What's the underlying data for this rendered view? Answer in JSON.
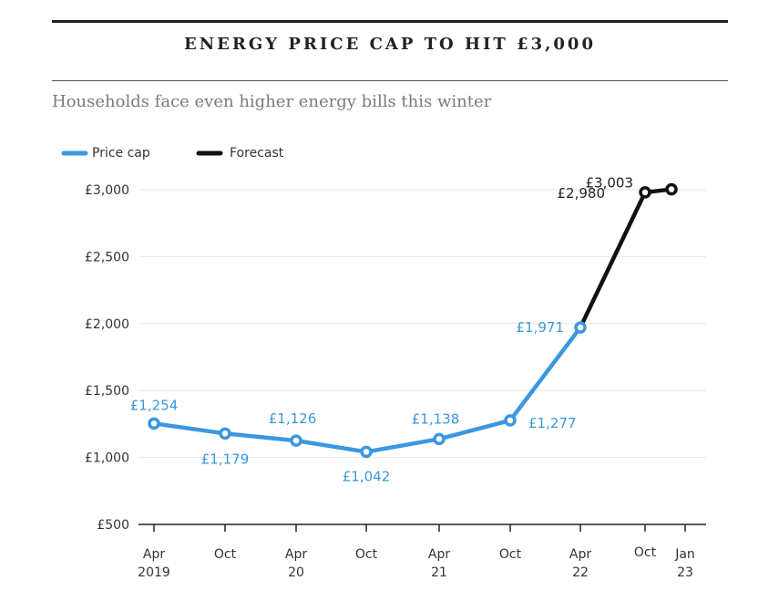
{
  "title": "ENERGY PRICE CAP TO HIT £3,000",
  "subtitle": "Households face even higher energy bills this winter",
  "colors": {
    "price_cap": "#3b97df",
    "forecast": "#111111",
    "label_blue": "#3b97df",
    "label_dark": "#222222"
  },
  "chart_data": {
    "type": "line",
    "title": "ENERGY PRICE CAP TO HIT £3,000",
    "subtitle": "Households face even higher energy bills this winter",
    "xlabel": "",
    "ylabel": "",
    "ylim": [
      500,
      3000
    ],
    "yticks": [
      "£500",
      "£1,000",
      "£1,500",
      "£2,000",
      "£2,500",
      "£3,000"
    ],
    "ytick_values": [
      500,
      1000,
      1500,
      2000,
      2500,
      3000
    ],
    "xticks": [
      {
        "line1": "Apr",
        "line2": "2019"
      },
      {
        "line1": "Oct",
        "line2": ""
      },
      {
        "line1": "Apr",
        "line2": "20"
      },
      {
        "line1": "Oct",
        "line2": ""
      },
      {
        "line1": "Apr",
        "line2": "21"
      },
      {
        "line1": "Oct",
        "line2": ""
      },
      {
        "line1": "Apr",
        "line2": "22"
      },
      {
        "line1": "Oct",
        "line2": ""
      },
      {
        "line1": "Jan",
        "line2": "23"
      }
    ],
    "grid": true,
    "legend": "top-left",
    "series": [
      {
        "name": "Price cap",
        "color": "#3b97df",
        "points": [
          {
            "x": "Apr 2019",
            "y": 1254,
            "label": "£1,254"
          },
          {
            "x": "Oct 2019",
            "y": 1179,
            "label": "£1,179"
          },
          {
            "x": "Apr 2020",
            "y": 1126,
            "label": "£1,126"
          },
          {
            "x": "Oct 2020",
            "y": 1042,
            "label": "£1,042"
          },
          {
            "x": "Apr 2021",
            "y": 1138,
            "label": "£1,138"
          },
          {
            "x": "Oct 2021",
            "y": 1277,
            "label": "£1,277"
          },
          {
            "x": "Apr 2022",
            "y": 1971,
            "label": "£1,971"
          }
        ]
      },
      {
        "name": "Forecast",
        "color": "#111111",
        "points": [
          {
            "x": "Apr 2022",
            "y": 1971,
            "label": ""
          },
          {
            "x": "Oct 2022",
            "y": 2980,
            "label": "£2,980"
          },
          {
            "x": "Jan 2023",
            "y": 3003,
            "label": "£3,003"
          }
        ]
      }
    ]
  }
}
